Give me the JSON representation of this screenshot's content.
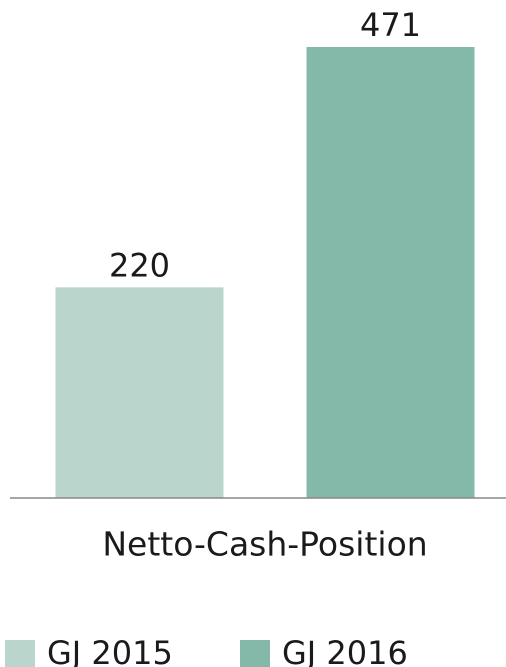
{
  "chart_data": {
    "type": "bar",
    "categories": [
      "Netto-Cash-Position"
    ],
    "series": [
      {
        "name": "GJ 2015",
        "color": "#b9d5cc",
        "values": [
          220
        ]
      },
      {
        "name": "GJ 2016",
        "color": "#84b8a8",
        "values": [
          471
        ]
      }
    ],
    "legend": "bottom"
  }
}
